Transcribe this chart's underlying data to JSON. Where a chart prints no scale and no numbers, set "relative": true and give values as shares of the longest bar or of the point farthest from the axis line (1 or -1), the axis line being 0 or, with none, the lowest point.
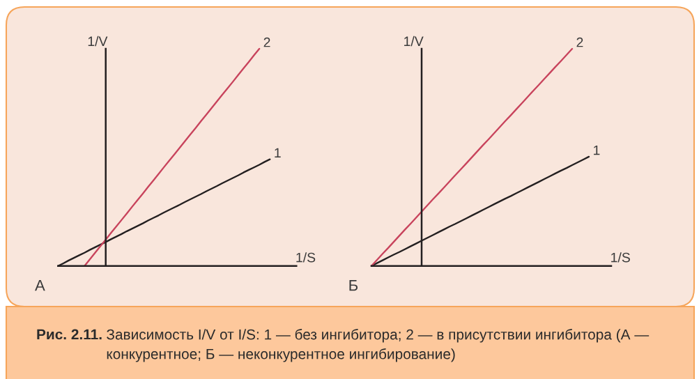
{
  "chart_data": [
    {
      "type": "line",
      "title": "А",
      "xlabel": "1/S",
      "ylabel": "1/V",
      "relative": true,
      "categories": [
        null,
        null,
        null,
        null,
        null,
        null,
        null,
        null,
        null,
        null,
        null,
        null,
        null,
        null,
        null,
        null,
        null,
        null,
        null,
        null,
        null,
        null,
        null,
        null,
        null,
        null,
        null,
        null,
        null,
        null,
        null,
        null,
        null,
        null,
        null,
        null,
        null,
        null,
        null,
        null,
        null,
        null,
        null,
        null,
        null,
        null
      ],
      "series": [
        {
          "name": "1",
          "color": "#231f20",
          "values": [
            0,
            0.012,
            0.025,
            0.037,
            0.049,
            0.061,
            0.074,
            0.086,
            0.098,
            0.11,
            0.123,
            0.135,
            0.147,
            0.16,
            0.172,
            0.184,
            0.196,
            0.209,
            0.221,
            0.233,
            0.246,
            0.258,
            0.27,
            0.282,
            0.295,
            0.307,
            0.319,
            0.331,
            0.344,
            0.356,
            0.368,
            0.381,
            0.393,
            0.405,
            0.417,
            0.43,
            0.442,
            0.454,
            0.466,
            0.479,
            0.491,
            null,
            null,
            null,
            null,
            null
          ]
        },
        {
          "name": "2",
          "color": "#c8435c",
          "values": [
            null,
            null,
            null,
            null,
            null,
            0,
            0.03,
            0.061,
            0.091,
            0.121,
            0.152,
            0.182,
            0.212,
            0.242,
            0.273,
            0.303,
            0.333,
            0.364,
            0.394,
            0.424,
            0.455,
            0.485,
            0.515,
            0.545,
            0.576,
            0.606,
            0.636,
            0.667,
            0.697,
            0.727,
            0.758,
            0.788,
            0.818,
            0.848,
            0.879,
            0.909,
            0.939,
            0.97,
            1,
            null,
            null,
            null,
            null,
            null,
            null,
            null
          ]
        }
      ],
      "annotations": [
        "Рис. 2.11.",
        "Зависимость I/V от I/S: 1 — без ингибитора; 2 — в присутствии ингибитора (А — конкурентное; Б — неконкурентное ингибирование)"
      ]
    },
    {
      "type": "line",
      "title": "Б",
      "xlabel": "1/S",
      "ylabel": "1/V",
      "relative": true,
      "categories": [
        null,
        null,
        null,
        null,
        null,
        null,
        null,
        null,
        null,
        null,
        null,
        null,
        null,
        null,
        null,
        null,
        null,
        null,
        null,
        null,
        null,
        null,
        null,
        null,
        null,
        null,
        null,
        null,
        null,
        null,
        null,
        null,
        null,
        null,
        null,
        null,
        null,
        null,
        null,
        null,
        null,
        null,
        null,
        null
      ],
      "series": [
        {
          "name": "1",
          "color": "#231f20",
          "values": [
            0,
            0.013,
            0.026,
            0.039,
            0.052,
            0.064,
            0.077,
            0.09,
            0.103,
            0.116,
            0.129,
            0.142,
            0.155,
            0.168,
            0.181,
            0.193,
            0.206,
            0.219,
            0.232,
            0.245,
            0.258,
            0.271,
            0.284,
            0.297,
            0.31,
            0.322,
            0.335,
            0.348,
            0.361,
            0.374,
            0.387,
            0.4,
            0.413,
            0.426,
            0.439,
            0.451,
            0.464,
            0.477,
            0.49,
            0.503,
            null,
            null,
            null,
            null
          ]
        },
        {
          "name": "2",
          "color": "#c8435c",
          "values": [
            0,
            0.028,
            0.056,
            0.083,
            0.111,
            0.139,
            0.167,
            0.194,
            0.222,
            0.25,
            0.278,
            0.306,
            0.333,
            0.361,
            0.389,
            0.417,
            0.444,
            0.472,
            0.5,
            0.528,
            0.556,
            0.583,
            0.611,
            0.639,
            0.667,
            0.694,
            0.722,
            0.75,
            0.778,
            0.806,
            0.833,
            0.861,
            0.889,
            0.917,
            0.944,
            0.972,
            1,
            null,
            null,
            null,
            null,
            null,
            null,
            null
          ]
        }
      ]
    }
  ]
}
